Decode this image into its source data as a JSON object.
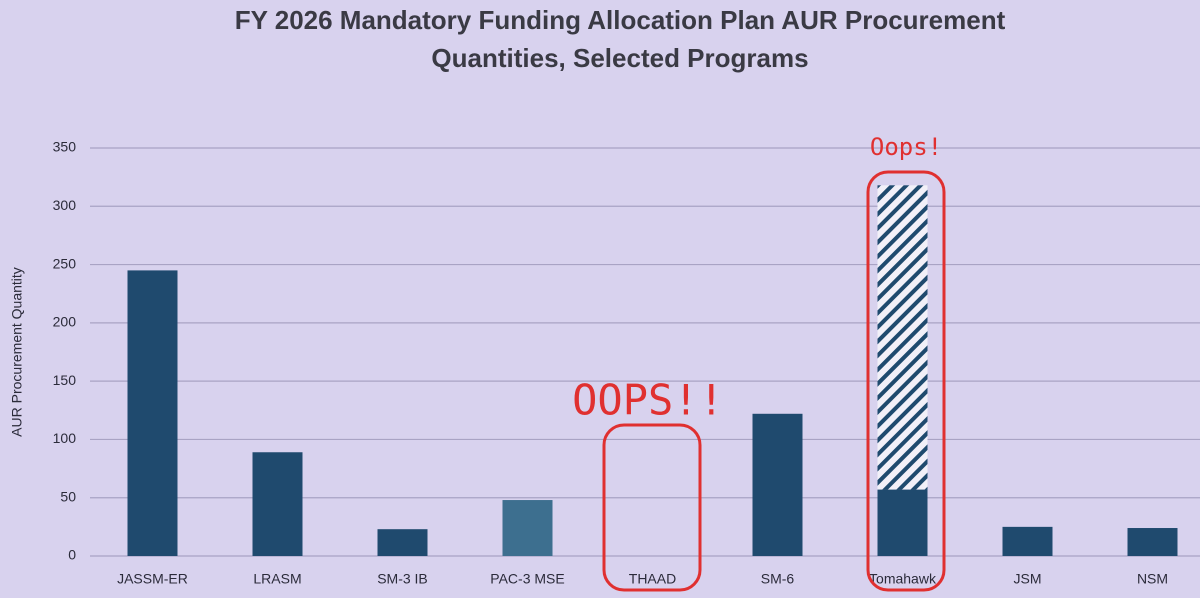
{
  "chart_data": {
    "type": "stacked_bar",
    "title": [
      "FY 2026 Mandatory Funding Allocation Plan AUR Procurement",
      "Quantities, Selected Programs"
    ],
    "y_label": "AUR Procurement Quantity",
    "categories": [
      "JASSM-ER",
      "LRASM",
      "SM-3 IB",
      "PAC-3 MSE",
      "THAAD",
      "SM-6",
      "Tomahawk",
      "JSM",
      "NSM"
    ],
    "series": [
      {
        "color": "#1f4a6e",
        "colors": [
          "#1f4a6e",
          "#1f4a6e",
          "#1f4a6e",
          "#3d6f8f",
          "#1f4a6e",
          "#1f4a6e",
          "#1f4a6e",
          "#1f4a6e",
          "#1f4a6e"
        ],
        "values": [
          245,
          89,
          23,
          48,
          0,
          122,
          57,
          25,
          24
        ]
      },
      {
        "color": "#1f4a6e",
        "pattern": "hatch",
        "values": [
          null,
          null,
          null,
          null,
          null,
          null,
          261,
          null,
          null
        ]
      }
    ],
    "annotations": [
      "OOPS!!",
      "Oops!"
    ],
    "ylim": [
      0,
      350
    ],
    "yticks": [
      0,
      50,
      100,
      150,
      200,
      250,
      300,
      350
    ],
    "grid": true
  }
}
